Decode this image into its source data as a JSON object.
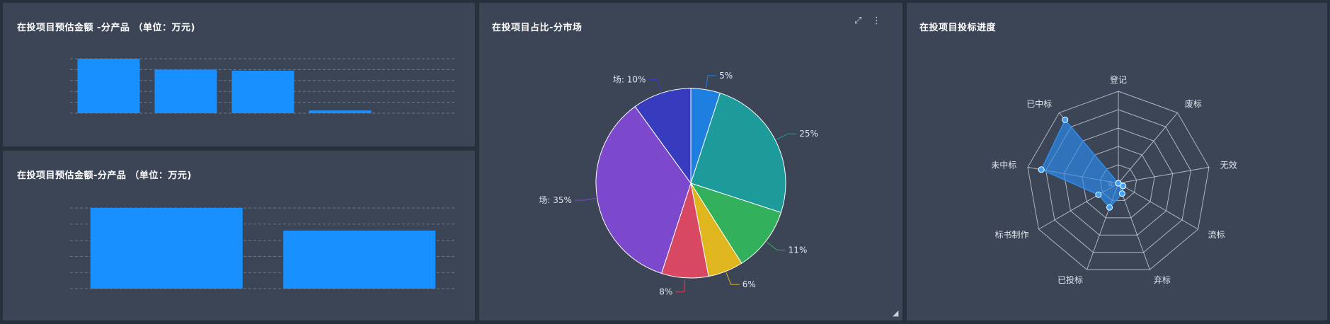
{
  "panels": {
    "top_left": {
      "title": "在投项目预估金额 -分产品 （单位：万元)"
    },
    "bottom_left": {
      "title": "在投项目预估金额-分产品 （单位：万元)"
    },
    "middle": {
      "title": "在投项目占比-分市场"
    },
    "right": {
      "title": "在投项目投标进度"
    }
  },
  "icons": {
    "expand": "expand-icon",
    "more": "more-vertical-icon",
    "resize": "resize-handle-icon"
  },
  "colors": {
    "panel_bg": "#3b4556",
    "page_bg": "#27303d",
    "bar": "#1890ff",
    "radar": "#2d8cf0"
  },
  "chart_data": [
    {
      "type": "bar",
      "categories": [
        "",
        "",
        "",
        "",
        ""
      ],
      "values": [
        100,
        80,
        78,
        5,
        0
      ],
      "ylim": [
        0,
        100
      ]
    },
    {
      "type": "bar",
      "categories": [
        "",
        ""
      ],
      "values": [
        100,
        72
      ],
      "ylim": [
        0,
        100
      ]
    },
    {
      "type": "pie",
      "slices": [
        {
          "label": "5%",
          "value": 5,
          "color": "#1e7fe0"
        },
        {
          "label": "25%",
          "value": 25,
          "color": "#1d9b9b"
        },
        {
          "label": "11%",
          "value": 11,
          "color": "#33b05c"
        },
        {
          "label": "6%",
          "value": 6,
          "color": "#e0b61e"
        },
        {
          "label": "8%",
          "value": 8,
          "color": "#d84862"
        },
        {
          "label": "场: 35%",
          "value": 35,
          "color": "#7c49cc"
        },
        {
          "label": "场: 10%",
          "value": 10,
          "color": "#373bbd"
        }
      ]
    },
    {
      "type": "radar",
      "indicators": [
        "登记",
        "废标",
        "无效",
        "流标",
        "弃标",
        "已投标",
        "标书制作",
        "未中标",
        "已中标"
      ],
      "values": [
        0,
        0,
        0,
        0.06,
        0.12,
        0.28,
        0.25,
        0.85,
        0.9
      ],
      "max": 1,
      "axis_tick_zero": "0"
    }
  ]
}
